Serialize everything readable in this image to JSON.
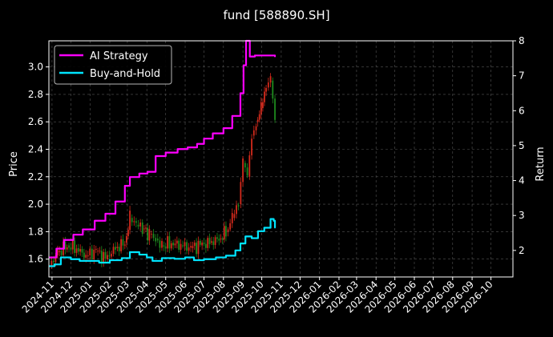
{
  "chart_data": {
    "type": "line",
    "title": "fund [588890.SH]",
    "ylabel_left": "Price",
    "ylabel_right": "Return",
    "ylim_left": [
      1.47,
      3.19
    ],
    "ylim_right": [
      1.24,
      8.0
    ],
    "yticks_left": [
      1.6,
      1.8,
      2.0,
      2.2,
      2.4,
      2.6,
      2.8,
      3.0
    ],
    "yticks_right": [
      2,
      3,
      4,
      5,
      6,
      7,
      8
    ],
    "ytick_labels_left": [
      "1.6",
      "1.8",
      "2.0",
      "2.2",
      "2.4",
      "2.6",
      "2.8",
      "3.0"
    ],
    "ytick_labels_right": [
      "2",
      "3",
      "4",
      "5",
      "6",
      "7",
      "8"
    ],
    "xlim": [
      "2024-10-27",
      "2026-11-05"
    ],
    "xticks": [
      "2024-11-01",
      "2024-12-01",
      "2025-01-01",
      "2025-02-01",
      "2025-03-01",
      "2025-04-01",
      "2025-05-01",
      "2025-06-01",
      "2025-07-01",
      "2025-08-01",
      "2025-09-01",
      "2025-10-01",
      "2025-11-01",
      "2025-12-01",
      "2026-01-01",
      "2026-02-01",
      "2026-03-01",
      "2026-04-01",
      "2026-05-01",
      "2026-06-01",
      "2026-07-01",
      "2026-08-01",
      "2026-09-01",
      "2026-10-01"
    ],
    "xtick_labels": [
      "2024-11",
      "2024-12",
      "2025-01",
      "2025-02",
      "2025-03",
      "2025-04",
      "2025-05",
      "2025-06",
      "2025-07",
      "2025-08",
      "2025-09",
      "2025-10",
      "2025-11",
      "2025-12",
      "2026-01",
      "2026-02",
      "2026-03",
      "2026-04",
      "2026-05",
      "2026-06",
      "2026-07",
      "2026-08",
      "2026-09",
      "2026-10"
    ],
    "grid": true,
    "legend_position": "top-left",
    "colors": {
      "background": "#000000",
      "ai_strategy": "#ff00ff",
      "buy_and_hold": "#00e5ff",
      "candle_up": "#d42a1c",
      "candle_down": "#1e8a1e",
      "grid": "#555555",
      "text": "#ffffff"
    },
    "series": [
      {
        "name": "AI Strategy",
        "axis": "right",
        "x": [
          "2024-10-28",
          "2024-11-08",
          "2024-11-20",
          "2024-12-05",
          "2024-12-20",
          "2025-01-08",
          "2025-01-25",
          "2025-02-10",
          "2025-02-25",
          "2025-03-05",
          "2025-03-20",
          "2025-04-02",
          "2025-04-15",
          "2025-05-01",
          "2025-05-20",
          "2025-06-05",
          "2025-06-20",
          "2025-07-01",
          "2025-07-15",
          "2025-08-01",
          "2025-08-15",
          "2025-08-28",
          "2025-09-02",
          "2025-09-06",
          "2025-09-12",
          "2025-09-20",
          "2025-10-15",
          "2025-10-22"
        ],
        "y": [
          1.8,
          2.05,
          2.3,
          2.45,
          2.6,
          2.85,
          3.05,
          3.4,
          3.85,
          4.1,
          4.2,
          4.25,
          4.7,
          4.8,
          4.9,
          4.95,
          5.05,
          5.2,
          5.35,
          5.5,
          5.85,
          6.5,
          7.3,
          8.0,
          7.55,
          7.58,
          7.58,
          7.55
        ]
      },
      {
        "name": "Buy-and-Hold",
        "axis": "right",
        "x": [
          "2024-10-28",
          "2024-11-05",
          "2024-11-15",
          "2024-12-01",
          "2024-12-15",
          "2025-01-01",
          "2025-01-15",
          "2025-02-01",
          "2025-02-20",
          "2025-03-05",
          "2025-03-20",
          "2025-04-01",
          "2025-04-10",
          "2025-04-25",
          "2025-05-15",
          "2025-06-01",
          "2025-06-15",
          "2025-07-01",
          "2025-07-20",
          "2025-08-05",
          "2025-08-20",
          "2025-08-28",
          "2025-09-05",
          "2025-09-15",
          "2025-09-25",
          "2025-10-05",
          "2025-10-15",
          "2025-10-20",
          "2025-10-22"
        ],
        "y": [
          1.55,
          1.6,
          1.8,
          1.75,
          1.7,
          1.7,
          1.65,
          1.72,
          1.78,
          1.95,
          1.88,
          1.8,
          1.7,
          1.78,
          1.76,
          1.8,
          1.72,
          1.75,
          1.8,
          1.85,
          2.0,
          2.2,
          2.4,
          2.35,
          2.55,
          2.65,
          2.9,
          2.85,
          2.65
        ]
      },
      {
        "name": "Price",
        "type": "candlestick",
        "axis": "left",
        "x": [
          "2024-10-28",
          "2024-11-10",
          "2024-11-25",
          "2024-12-10",
          "2024-12-25",
          "2025-01-10",
          "2025-01-25",
          "2025-02-10",
          "2025-02-25",
          "2025-03-05",
          "2025-03-15",
          "2025-03-25",
          "2025-04-05",
          "2025-04-15",
          "2025-04-25",
          "2025-05-10",
          "2025-05-25",
          "2025-06-10",
          "2025-06-25",
          "2025-07-10",
          "2025-07-25",
          "2025-08-05",
          "2025-08-15",
          "2025-08-25",
          "2025-09-01",
          "2025-09-08",
          "2025-09-15",
          "2025-09-22",
          "2025-09-30",
          "2025-10-08",
          "2025-10-15",
          "2025-10-22"
        ],
        "y": [
          1.55,
          1.65,
          1.7,
          1.68,
          1.62,
          1.66,
          1.6,
          1.68,
          1.72,
          1.9,
          1.85,
          1.82,
          1.78,
          1.75,
          1.7,
          1.72,
          1.7,
          1.68,
          1.7,
          1.72,
          1.75,
          1.8,
          1.9,
          2.0,
          2.3,
          2.2,
          2.5,
          2.6,
          2.7,
          2.85,
          2.9,
          2.6
        ]
      }
    ]
  }
}
